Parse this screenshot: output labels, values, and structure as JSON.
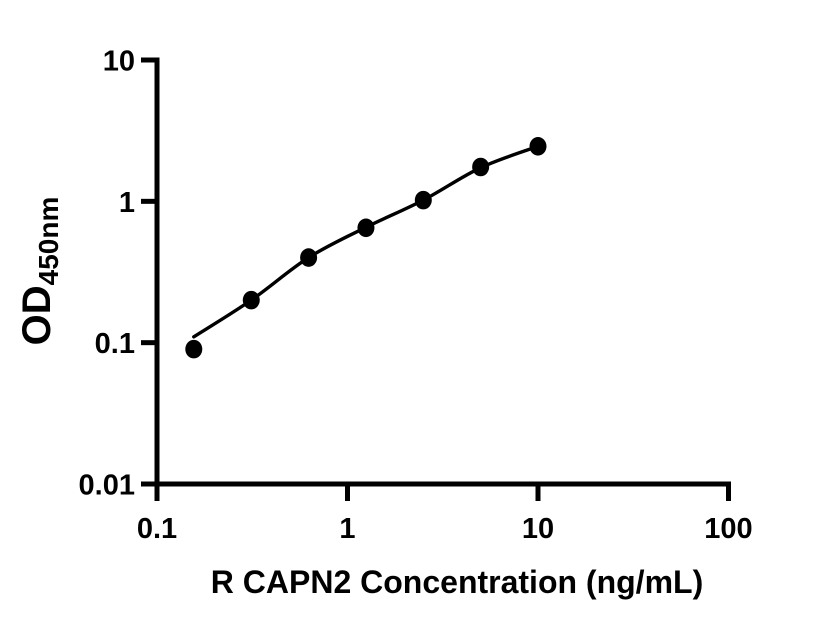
{
  "figure": {
    "background_color": "#ffffff",
    "ink_color": "#000000"
  },
  "chart_data": {
    "type": "scatter",
    "title": "",
    "xlabel": "R CAPN2 Concentration (ng/mL)",
    "ylabel": "OD450nm",
    "ylabel_main": "OD",
    "ylabel_sub": "450nm",
    "x_scale": "log",
    "y_scale": "log",
    "xlim": [
      0.1,
      100
    ],
    "ylim": [
      0.01,
      10
    ],
    "x_ticks": [
      0.1,
      1,
      10,
      100
    ],
    "x_tick_labels": [
      "0.1",
      "1",
      "10",
      "100"
    ],
    "y_ticks": [
      10,
      1,
      0.1,
      0.01
    ],
    "y_tick_labels": [
      "10",
      "1",
      "0.1",
      "0.01"
    ],
    "grid": false,
    "legend": "none",
    "series": [
      {
        "name": "standard-curve-points",
        "marker": "filled-circle",
        "color": "#000000",
        "x": [
          0.156,
          0.3125,
          0.625,
          1.25,
          2.5,
          5,
          10
        ],
        "y": [
          0.09,
          0.2,
          0.4,
          0.65,
          1.02,
          1.75,
          2.45
        ]
      }
    ],
    "fit_curve": {
      "name": "four-parameter-logistic-fit",
      "color": "#000000",
      "x": [
        0.156,
        0.3125,
        0.625,
        1.25,
        2.5,
        5,
        10
      ],
      "y": [
        0.11,
        0.2,
        0.4,
        0.655,
        1.02,
        1.73,
        2.45
      ]
    }
  }
}
